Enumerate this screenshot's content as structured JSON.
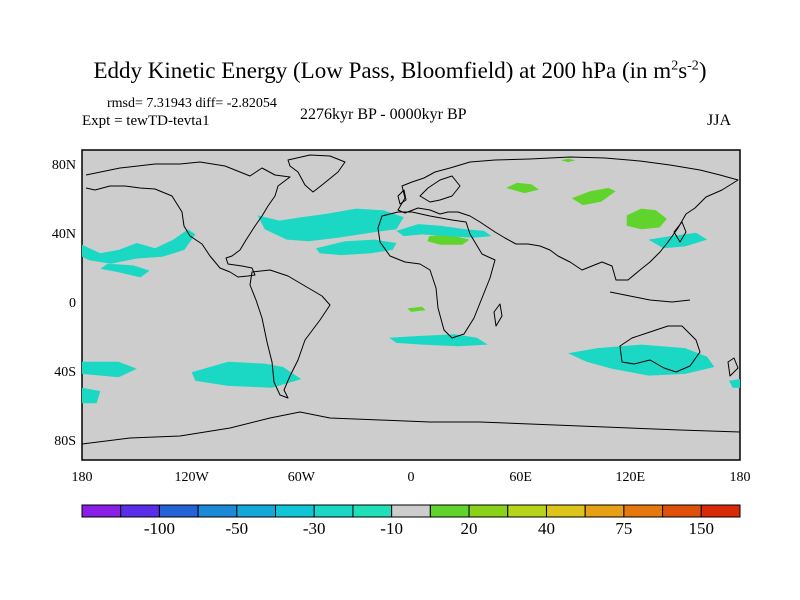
{
  "title": {
    "main": "Eddy Kinetic Energy (Low Pass, Bloomfield) at 200 hPa (in m",
    "sup1": "2",
    "mid": "s",
    "sup2": "-2",
    "end": ")"
  },
  "stats_line": "rmsd= 7.31943 diff= -2.82054",
  "experiment": "Expt = tewTD-tevta1",
  "period": "2276kyr BP - 0000kyr BP",
  "season": "JJA",
  "chart_data": {
    "type": "heatmap",
    "title": "Eddy Kinetic Energy (Low Pass, Bloomfield) at 200 hPa (in m2s-2)",
    "xlabel": "",
    "ylabel": "",
    "xlim": [
      -180,
      180
    ],
    "ylim": [
      -90,
      90
    ],
    "x_ticks": [
      {
        "value": -180,
        "label": "180"
      },
      {
        "value": -120,
        "label": "120W"
      },
      {
        "value": -60,
        "label": "60W"
      },
      {
        "value": 0,
        "label": "0"
      },
      {
        "value": 60,
        "label": "60E"
      },
      {
        "value": 120,
        "label": "120E"
      },
      {
        "value": 180,
        "label": "180"
      }
    ],
    "y_ticks": [
      {
        "value": 80,
        "label": "80N"
      },
      {
        "value": 40,
        "label": "40N"
      },
      {
        "value": 0,
        "label": "0"
      },
      {
        "value": -40,
        "label": "40S"
      },
      {
        "value": -80,
        "label": "80S"
      }
    ],
    "colorbar": {
      "colors": [
        "#8a1ee6",
        "#5a2ee8",
        "#2462d8",
        "#1a8ad6",
        "#12a8d8",
        "#10c6d6",
        "#1ad8c4",
        "#1fe0b8",
        "#cdcdcd",
        "#60d42c",
        "#8ad21a",
        "#b8d41a",
        "#dcc41a",
        "#e6a014",
        "#e4780c",
        "#de500a",
        "#d82a08"
      ],
      "labels": [
        "-100",
        "-50",
        "-30",
        "-10",
        "20",
        "40",
        "75",
        "150"
      ],
      "background": "#cdcdcd"
    },
    "regions": [
      {
        "color": "#1ad8c4",
        "lon_lat": [
          [
            -180,
            35
          ],
          [
            -170,
            30
          ],
          [
            -160,
            32
          ],
          [
            -150,
            36
          ],
          [
            -140,
            33
          ],
          [
            -130,
            38
          ],
          [
            -122,
            44
          ],
          [
            -118,
            41
          ],
          [
            -124,
            32
          ],
          [
            -136,
            28
          ],
          [
            -150,
            27
          ],
          [
            -164,
            24
          ],
          [
            -176,
            26
          ],
          [
            -180,
            28
          ]
        ]
      },
      {
        "color": "#1ad8c4",
        "lon_lat": [
          [
            -170,
            21
          ],
          [
            -160,
            19
          ],
          [
            -148,
            16
          ],
          [
            -143,
            20
          ],
          [
            -152,
            23
          ],
          [
            -166,
            24
          ]
        ]
      },
      {
        "color": "#1ad8c4",
        "lon_lat": [
          [
            -84,
            52
          ],
          [
            -72,
            49
          ],
          [
            -60,
            51
          ],
          [
            -46,
            53
          ],
          [
            -30,
            56
          ],
          [
            -15,
            55
          ],
          [
            -4,
            51
          ],
          [
            -8,
            44
          ],
          [
            -22,
            42
          ],
          [
            -40,
            39
          ],
          [
            -56,
            37
          ],
          [
            -68,
            38
          ],
          [
            -80,
            44
          ]
        ]
      },
      {
        "color": "#1ad8c4",
        "lon_lat": [
          [
            -52,
            33
          ],
          [
            -36,
            37
          ],
          [
            -20,
            38
          ],
          [
            -8,
            36
          ],
          [
            -10,
            32
          ],
          [
            -22,
            30
          ],
          [
            -38,
            29
          ],
          [
            -50,
            30
          ]
        ]
      },
      {
        "color": "#60d42c",
        "lon_lat": [
          [
            10,
            40
          ],
          [
            20,
            41
          ],
          [
            32,
            38
          ],
          [
            28,
            35
          ],
          [
            16,
            35
          ],
          [
            9,
            37
          ]
        ]
      },
      {
        "color": "#1ad8c4",
        "lon_lat": [
          [
            -8,
            43
          ],
          [
            4,
            47
          ],
          [
            16,
            46
          ],
          [
            30,
            44
          ],
          [
            40,
            43
          ],
          [
            44,
            40
          ],
          [
            34,
            39
          ],
          [
            20,
            40
          ],
          [
            6,
            41
          ],
          [
            -4,
            40
          ]
        ]
      },
      {
        "color": "#60d42c",
        "lon_lat": [
          [
            52,
            68
          ],
          [
            58,
            71
          ],
          [
            66,
            70
          ],
          [
            70,
            67
          ],
          [
            62,
            65
          ]
        ]
      },
      {
        "color": "#60d42c",
        "lon_lat": [
          [
            88,
            62
          ],
          [
            98,
            66
          ],
          [
            108,
            68
          ],
          [
            112,
            66
          ],
          [
            104,
            60
          ],
          [
            94,
            58
          ]
        ]
      },
      {
        "color": "#60d42c",
        "lon_lat": [
          [
            118,
            52
          ],
          [
            126,
            56
          ],
          [
            134,
            55
          ],
          [
            140,
            50
          ],
          [
            136,
            45
          ],
          [
            126,
            44
          ],
          [
            118,
            46
          ]
        ]
      },
      {
        "color": "#1ad8c4",
        "lon_lat": [
          [
            130,
            38
          ],
          [
            142,
            40
          ],
          [
            156,
            42
          ],
          [
            162,
            38
          ],
          [
            150,
            34
          ],
          [
            138,
            33
          ]
        ]
      },
      {
        "color": "#60d42c",
        "lon_lat": [
          [
            82,
            84
          ],
          [
            86,
            85
          ],
          [
            90,
            84
          ],
          [
            86,
            83
          ]
        ]
      },
      {
        "color": "#1ad8c4",
        "lon_lat": [
          [
            -120,
            -39
          ],
          [
            -100,
            -33
          ],
          [
            -80,
            -34
          ],
          [
            -70,
            -36
          ],
          [
            -60,
            -43
          ],
          [
            -76,
            -48
          ],
          [
            -100,
            -47
          ],
          [
            -118,
            -44
          ]
        ]
      },
      {
        "color": "#1ad8c4",
        "lon_lat": [
          [
            -180,
            -33
          ],
          [
            -160,
            -33
          ],
          [
            -150,
            -37
          ],
          [
            -160,
            -42
          ],
          [
            -180,
            -40
          ]
        ]
      },
      {
        "color": "#1ad8c4",
        "lon_lat": [
          [
            -180,
            -48
          ],
          [
            -170,
            -50
          ],
          [
            -172,
            -57
          ],
          [
            -180,
            -57
          ]
        ]
      },
      {
        "color": "#1ad8c4",
        "lon_lat": [
          [
            -12,
            -19
          ],
          [
            4,
            -18
          ],
          [
            24,
            -17
          ],
          [
            36,
            -19
          ],
          [
            42,
            -23
          ],
          [
            26,
            -24
          ],
          [
            6,
            -23
          ],
          [
            -8,
            -22
          ]
        ]
      },
      {
        "color": "#1ad8c4",
        "lon_lat": [
          [
            86,
            -28
          ],
          [
            102,
            -25
          ],
          [
            126,
            -23
          ],
          [
            150,
            -25
          ],
          [
            162,
            -30
          ],
          [
            166,
            -36
          ],
          [
            150,
            -40
          ],
          [
            130,
            -41
          ],
          [
            110,
            -37
          ],
          [
            96,
            -33
          ]
        ]
      },
      {
        "color": "#1ad8c4",
        "lon_lat": [
          [
            174,
            -44
          ],
          [
            180,
            -43
          ],
          [
            180,
            -48
          ],
          [
            176,
            -48
          ]
        ]
      },
      {
        "color": "#60d42c",
        "lon_lat": [
          [
            -2,
            -2
          ],
          [
            6,
            -1
          ],
          [
            8,
            -3
          ],
          [
            0,
            -4
          ]
        ]
      }
    ]
  }
}
